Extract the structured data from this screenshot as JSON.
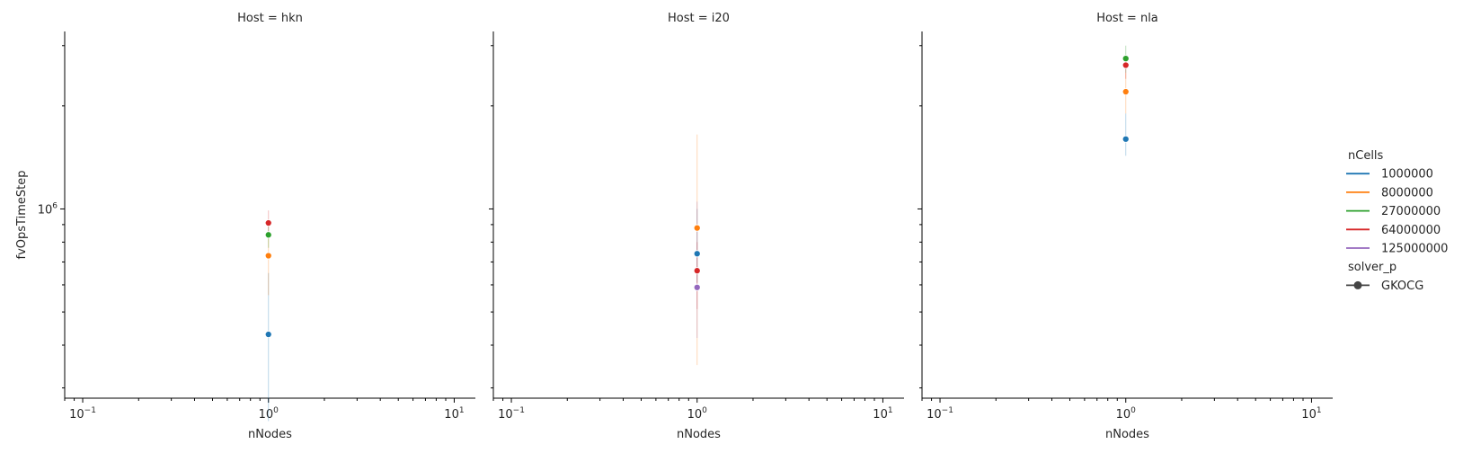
{
  "chart_data": {
    "type": "scatter",
    "panels": [
      {
        "title": "Host = hkn",
        "xlabel": "nNodes",
        "ylabel": "fvOpsTimeStep",
        "points": [
          {
            "series": "1000000",
            "x": 1,
            "y": 430000,
            "ci": [
              240000,
              650000
            ]
          },
          {
            "series": "8000000",
            "x": 1,
            "y": 730000,
            "ci": [
              560000,
              860000
            ]
          },
          {
            "series": "27000000",
            "x": 1,
            "y": 840000,
            "ci": [
              770000,
              900000
            ]
          },
          {
            "series": "64000000",
            "x": 1,
            "y": 910000,
            "ci": [
              830000,
              990000
            ]
          }
        ]
      },
      {
        "title": "Host = i20",
        "xlabel": "nNodes",
        "ylabel": "",
        "points": [
          {
            "series": "1000000",
            "x": 1,
            "y": 740000,
            "ci": [
              610000,
              1000000
            ]
          },
          {
            "series": "8000000",
            "x": 1,
            "y": 880000,
            "ci": [
              350000,
              1650000
            ]
          },
          {
            "series": "64000000",
            "x": 1,
            "y": 660000,
            "ci": [
              510000,
              800000
            ]
          },
          {
            "series": "125000000",
            "x": 1,
            "y": 590000,
            "ci": [
              420000,
              1050000
            ]
          }
        ]
      },
      {
        "title": "Host = nla",
        "xlabel": "nNodes",
        "ylabel": "",
        "points": [
          {
            "series": "1000000",
            "x": 1,
            "y": 1600000,
            "ci": [
              1430000,
              1900000
            ]
          },
          {
            "series": "8000000",
            "x": 1,
            "y": 2200000,
            "ci": [
              1900000,
              2500000
            ]
          },
          {
            "series": "27000000",
            "x": 1,
            "y": 2750000,
            "ci": [
              2500000,
              3000000
            ]
          },
          {
            "series": "64000000",
            "x": 1,
            "y": 2630000,
            "ci": [
              2400000,
              2800000
            ]
          }
        ]
      }
    ],
    "xscale": "log",
    "yscale": "log",
    "xlim": [
      0.08,
      13
    ],
    "ylim": [
      280000,
      3300000
    ],
    "x_ticks": [
      {
        "value": 0.1,
        "base": "10",
        "exp": "−1"
      },
      {
        "value": 1,
        "base": "10",
        "exp": "0"
      },
      {
        "value": 10,
        "base": "10",
        "exp": "1"
      }
    ],
    "y_ticks": [
      {
        "value": 1000000,
        "base": "10",
        "exp": "6"
      }
    ],
    "legend": {
      "placement": "right",
      "hue_title": "nCells",
      "hue_entries": [
        {
          "label": "1000000",
          "color": "#1f77b4"
        },
        {
          "label": "8000000",
          "color": "#ff7f0e"
        },
        {
          "label": "27000000",
          "color": "#2ca02c"
        },
        {
          "label": "64000000",
          "color": "#d62728"
        },
        {
          "label": "125000000",
          "color": "#9467bd"
        }
      ],
      "style_title": "solver_p",
      "style_entries": [
        {
          "label": "GKOCG",
          "color": "#444444"
        }
      ]
    },
    "grid": false
  }
}
